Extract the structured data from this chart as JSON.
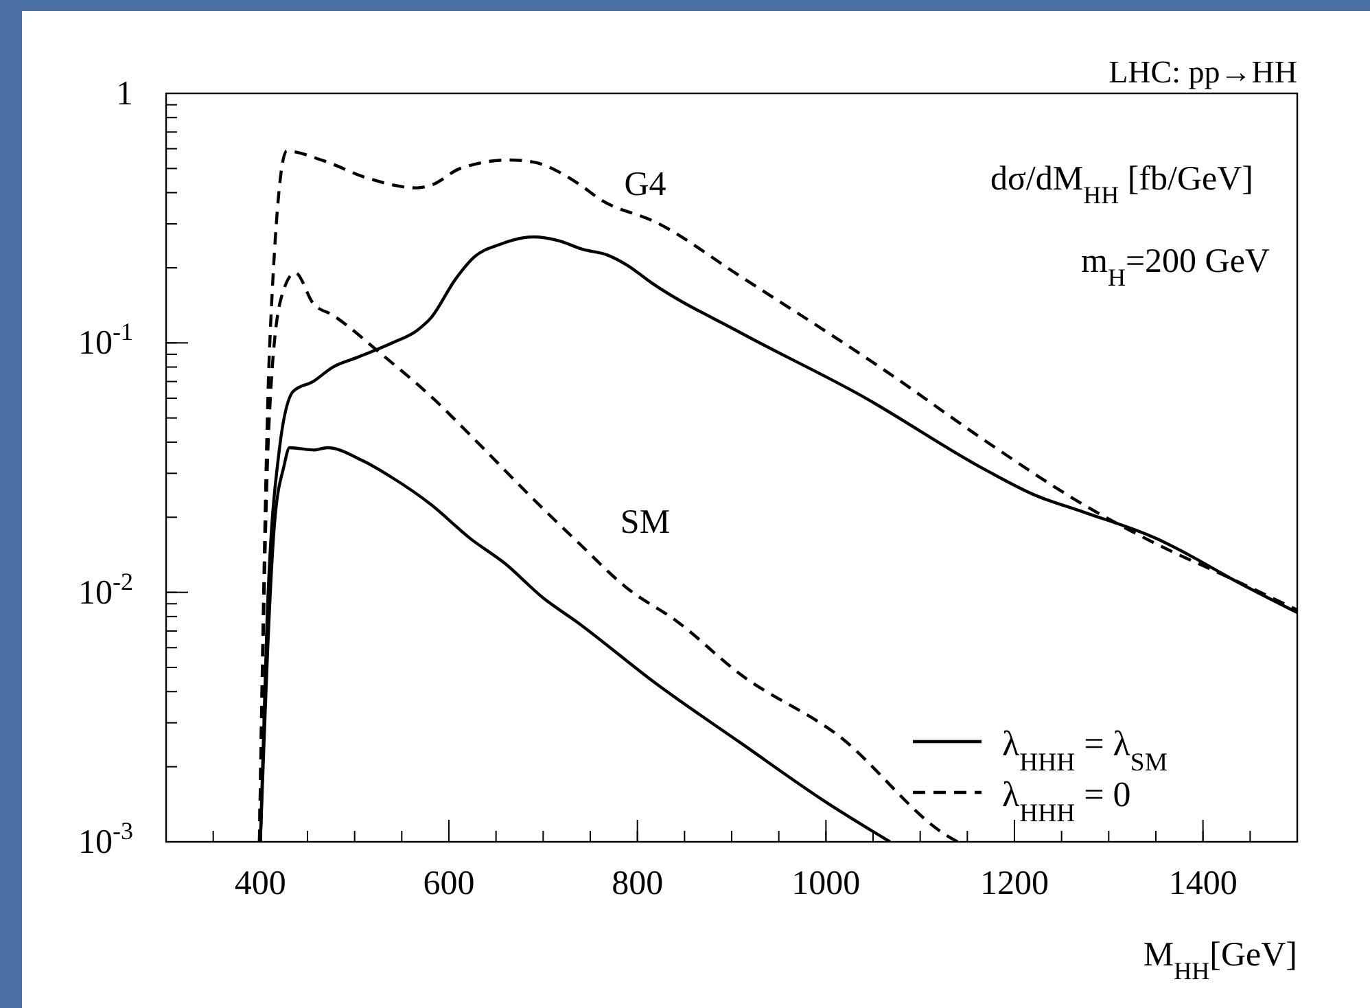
{
  "chart_data": {
    "type": "line",
    "title": "LHC: pp→HH",
    "xlabel": "M$_{HH}$[GeV]",
    "ylabel": "dσ/dM$_{HH}$ [fb/GeV]",
    "annotations": [
      "m$_{H}$=200 GeV",
      "G4",
      "SM"
    ],
    "log": "y",
    "xlim": [
      300,
      1500
    ],
    "ylim": [
      0.001,
      1
    ],
    "xticks": [
      400,
      600,
      800,
      1000,
      1200,
      1400
    ],
    "yticks": [
      {
        "value": 0.001,
        "label": "10$^{-3}$"
      },
      {
        "value": 0.01,
        "label": "10$^{-2}$"
      },
      {
        "value": 0.1,
        "label": "10$^{-1}$"
      },
      1
    ],
    "legend": "bottom right",
    "series": [
      {
        "name": "λ$_{HHH}$ = λ$_{SM}$",
        "color": "#000000",
        "line_style": "solid",
        "x": [
          400,
          407,
          420,
          435,
          456,
          477,
          503,
          540,
          566,
          581,
          607,
          627,
          654,
          690,
          716,
          742,
          768,
          789,
          815,
          909,
          1039,
          1169,
          1221,
          1273,
          1351,
          1387,
          1429,
          1500
        ],
        "values": [
          0.001,
          0.0076,
          0.037,
          0.064,
          0.07,
          0.08,
          0.0875,
          0.1,
          0.112,
          0.126,
          0.18,
          0.221,
          0.248,
          0.266,
          0.257,
          0.237,
          0.225,
          0.205,
          0.174,
          0.11,
          0.061,
          0.031,
          0.0246,
          0.021,
          0.0164,
          0.014,
          0.0114,
          0.0083
        ]
      },
      {
        "name": "λ$_{HHH}$ = 0",
        "color": "#000000",
        "line_style": "dashed",
        "x": [
          399,
          410,
          428,
          467,
          514,
          566,
          582,
          612,
          664,
          690,
          736,
          762,
          820,
          909,
          1065,
          1169,
          1273,
          1351,
          1429,
          1500
        ],
        "values": [
          0.001,
          0.1,
          0.587,
          0.537,
          0.457,
          0.418,
          0.43,
          0.5,
          0.541,
          0.53,
          0.438,
          0.373,
          0.304,
          0.185,
          0.0764,
          0.0405,
          0.0225,
          0.0156,
          0.0114,
          0.0085
        ]
      },
      {
        "color": "#000000",
        "line_style": "solid",
        "x": [
          400,
          415,
          425,
          431,
          457,
          471,
          508,
          540,
          581,
          623,
          659,
          700,
          736,
          820,
          909,
          998,
          1068
        ],
        "values": [
          0.001,
          0.0188,
          0.032,
          0.038,
          0.0372,
          0.038,
          0.0338,
          0.0288,
          0.0225,
          0.0164,
          0.0131,
          0.0095,
          0.0076,
          0.0043,
          0.0025,
          0.00146,
          0.001
        ]
      },
      {
        "color": "#000000",
        "line_style": "dashed",
        "x": [
          399,
          409,
          422,
          437,
          456,
          477,
          529,
          581,
          633,
          685,
          736,
          789,
          841,
          909,
          1013,
          1130,
          1140
        ],
        "values": [
          0.001,
          0.046,
          0.151,
          0.191,
          0.144,
          0.129,
          0.0898,
          0.061,
          0.039,
          0.0246,
          0.016,
          0.0104,
          0.0077,
          0.0047,
          0.00267,
          0.00105,
          0.001
        ]
      }
    ]
  }
}
